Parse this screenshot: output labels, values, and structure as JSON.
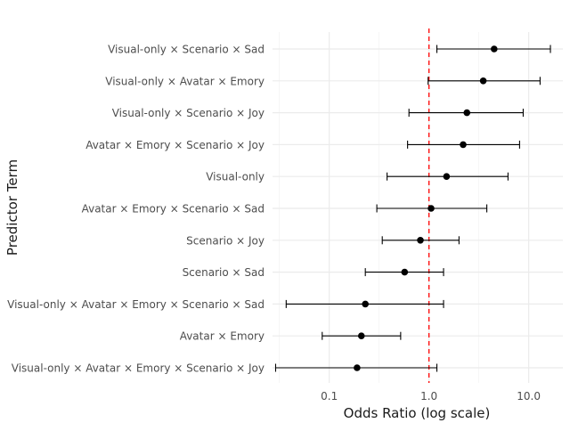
{
  "chart_data": {
    "type": "scatter",
    "subtype": "forest-plot",
    "xlabel": "Odds Ratio (log scale)",
    "ylabel": "Predictor Term",
    "x_scale": "log10",
    "xlim": [
      0.027,
      22
    ],
    "x_ticks": [
      0.1,
      1.0,
      10.0
    ],
    "x_tick_labels": [
      "0.1",
      "1.0",
      "10.0"
    ],
    "reference_line": {
      "x": 1.0,
      "color": "#ff0000",
      "style": "dashed"
    },
    "grid": true,
    "point_color": "#000000",
    "terms": [
      {
        "label": "Visual-only × Scenario ×  Sad",
        "estimate": 4.5,
        "ci_low": 1.2,
        "ci_high": 16.5
      },
      {
        "label": "Visual-only × Avatar ×  Emory",
        "estimate": 3.5,
        "ci_low": 0.98,
        "ci_high": 13.0
      },
      {
        "label": "Visual-only × Scenario ×  Joy",
        "estimate": 2.4,
        "ci_low": 0.63,
        "ci_high": 8.8
      },
      {
        "label": "Avatar ×  Emory × Scenario ×  Joy",
        "estimate": 2.2,
        "ci_low": 0.61,
        "ci_high": 8.1
      },
      {
        "label": "Visual-only",
        "estimate": 1.5,
        "ci_low": 0.38,
        "ci_high": 6.2
      },
      {
        "label": "Avatar ×  Emory × Scenario ×  Sad",
        "estimate": 1.05,
        "ci_low": 0.3,
        "ci_high": 3.8
      },
      {
        "label": "Scenario ×  Joy",
        "estimate": 0.82,
        "ci_low": 0.34,
        "ci_high": 2.0
      },
      {
        "label": "Scenario ×  Sad",
        "estimate": 0.57,
        "ci_low": 0.23,
        "ci_high": 1.4
      },
      {
        "label": "Visual-only × Avatar ×  Emory × Scenario ×  Sad",
        "estimate": 0.23,
        "ci_low": 0.037,
        "ci_high": 1.4
      },
      {
        "label": "Avatar ×  Emory",
        "estimate": 0.21,
        "ci_low": 0.085,
        "ci_high": 0.52
      },
      {
        "label": "Visual-only × Avatar ×  Emory × Scenario ×  Joy",
        "estimate": 0.19,
        "ci_low": 0.029,
        "ci_high": 1.2
      }
    ]
  }
}
